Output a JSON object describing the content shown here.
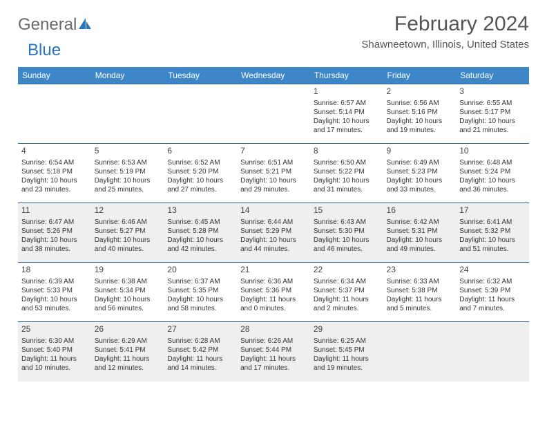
{
  "logo": {
    "word1": "General",
    "word2": "Blue"
  },
  "header": {
    "month_year": "February 2024",
    "location": "Shawneetown, Illinois, United States"
  },
  "colors": {
    "header_bg": "#3d87c9",
    "header_text": "#ffffff",
    "row_border": "#2f5f8f",
    "shaded_bg": "#efefef",
    "text": "#333333",
    "logo_gray": "#6a6a6a",
    "logo_blue": "#2a74bd"
  },
  "day_headers": [
    "Sunday",
    "Monday",
    "Tuesday",
    "Wednesday",
    "Thursday",
    "Friday",
    "Saturday"
  ],
  "weeks": [
    {
      "shaded": false,
      "days": [
        {
          "n": "",
          "sr": "",
          "ss": "",
          "dl": ""
        },
        {
          "n": "",
          "sr": "",
          "ss": "",
          "dl": ""
        },
        {
          "n": "",
          "sr": "",
          "ss": "",
          "dl": ""
        },
        {
          "n": "",
          "sr": "",
          "ss": "",
          "dl": ""
        },
        {
          "n": "1",
          "sr": "6:57 AM",
          "ss": "5:14 PM",
          "dl": "10 hours and 17 minutes."
        },
        {
          "n": "2",
          "sr": "6:56 AM",
          "ss": "5:16 PM",
          "dl": "10 hours and 19 minutes."
        },
        {
          "n": "3",
          "sr": "6:55 AM",
          "ss": "5:17 PM",
          "dl": "10 hours and 21 minutes."
        }
      ]
    },
    {
      "shaded": false,
      "days": [
        {
          "n": "4",
          "sr": "6:54 AM",
          "ss": "5:18 PM",
          "dl": "10 hours and 23 minutes."
        },
        {
          "n": "5",
          "sr": "6:53 AM",
          "ss": "5:19 PM",
          "dl": "10 hours and 25 minutes."
        },
        {
          "n": "6",
          "sr": "6:52 AM",
          "ss": "5:20 PM",
          "dl": "10 hours and 27 minutes."
        },
        {
          "n": "7",
          "sr": "6:51 AM",
          "ss": "5:21 PM",
          "dl": "10 hours and 29 minutes."
        },
        {
          "n": "8",
          "sr": "6:50 AM",
          "ss": "5:22 PM",
          "dl": "10 hours and 31 minutes."
        },
        {
          "n": "9",
          "sr": "6:49 AM",
          "ss": "5:23 PM",
          "dl": "10 hours and 33 minutes."
        },
        {
          "n": "10",
          "sr": "6:48 AM",
          "ss": "5:24 PM",
          "dl": "10 hours and 36 minutes."
        }
      ]
    },
    {
      "shaded": true,
      "days": [
        {
          "n": "11",
          "sr": "6:47 AM",
          "ss": "5:26 PM",
          "dl": "10 hours and 38 minutes."
        },
        {
          "n": "12",
          "sr": "6:46 AM",
          "ss": "5:27 PM",
          "dl": "10 hours and 40 minutes."
        },
        {
          "n": "13",
          "sr": "6:45 AM",
          "ss": "5:28 PM",
          "dl": "10 hours and 42 minutes."
        },
        {
          "n": "14",
          "sr": "6:44 AM",
          "ss": "5:29 PM",
          "dl": "10 hours and 44 minutes."
        },
        {
          "n": "15",
          "sr": "6:43 AM",
          "ss": "5:30 PM",
          "dl": "10 hours and 46 minutes."
        },
        {
          "n": "16",
          "sr": "6:42 AM",
          "ss": "5:31 PM",
          "dl": "10 hours and 49 minutes."
        },
        {
          "n": "17",
          "sr": "6:41 AM",
          "ss": "5:32 PM",
          "dl": "10 hours and 51 minutes."
        }
      ]
    },
    {
      "shaded": false,
      "days": [
        {
          "n": "18",
          "sr": "6:39 AM",
          "ss": "5:33 PM",
          "dl": "10 hours and 53 minutes."
        },
        {
          "n": "19",
          "sr": "6:38 AM",
          "ss": "5:34 PM",
          "dl": "10 hours and 56 minutes."
        },
        {
          "n": "20",
          "sr": "6:37 AM",
          "ss": "5:35 PM",
          "dl": "10 hours and 58 minutes."
        },
        {
          "n": "21",
          "sr": "6:36 AM",
          "ss": "5:36 PM",
          "dl": "11 hours and 0 minutes."
        },
        {
          "n": "22",
          "sr": "6:34 AM",
          "ss": "5:37 PM",
          "dl": "11 hours and 2 minutes."
        },
        {
          "n": "23",
          "sr": "6:33 AM",
          "ss": "5:38 PM",
          "dl": "11 hours and 5 minutes."
        },
        {
          "n": "24",
          "sr": "6:32 AM",
          "ss": "5:39 PM",
          "dl": "11 hours and 7 minutes."
        }
      ]
    },
    {
      "shaded": true,
      "days": [
        {
          "n": "25",
          "sr": "6:30 AM",
          "ss": "5:40 PM",
          "dl": "11 hours and 10 minutes."
        },
        {
          "n": "26",
          "sr": "6:29 AM",
          "ss": "5:41 PM",
          "dl": "11 hours and 12 minutes."
        },
        {
          "n": "27",
          "sr": "6:28 AM",
          "ss": "5:42 PM",
          "dl": "11 hours and 14 minutes."
        },
        {
          "n": "28",
          "sr": "6:26 AM",
          "ss": "5:44 PM",
          "dl": "11 hours and 17 minutes."
        },
        {
          "n": "29",
          "sr": "6:25 AM",
          "ss": "5:45 PM",
          "dl": "11 hours and 19 minutes."
        },
        {
          "n": "",
          "sr": "",
          "ss": "",
          "dl": ""
        },
        {
          "n": "",
          "sr": "",
          "ss": "",
          "dl": ""
        }
      ]
    }
  ],
  "labels": {
    "sunrise": "Sunrise:",
    "sunset": "Sunset:",
    "daylight": "Daylight:"
  }
}
